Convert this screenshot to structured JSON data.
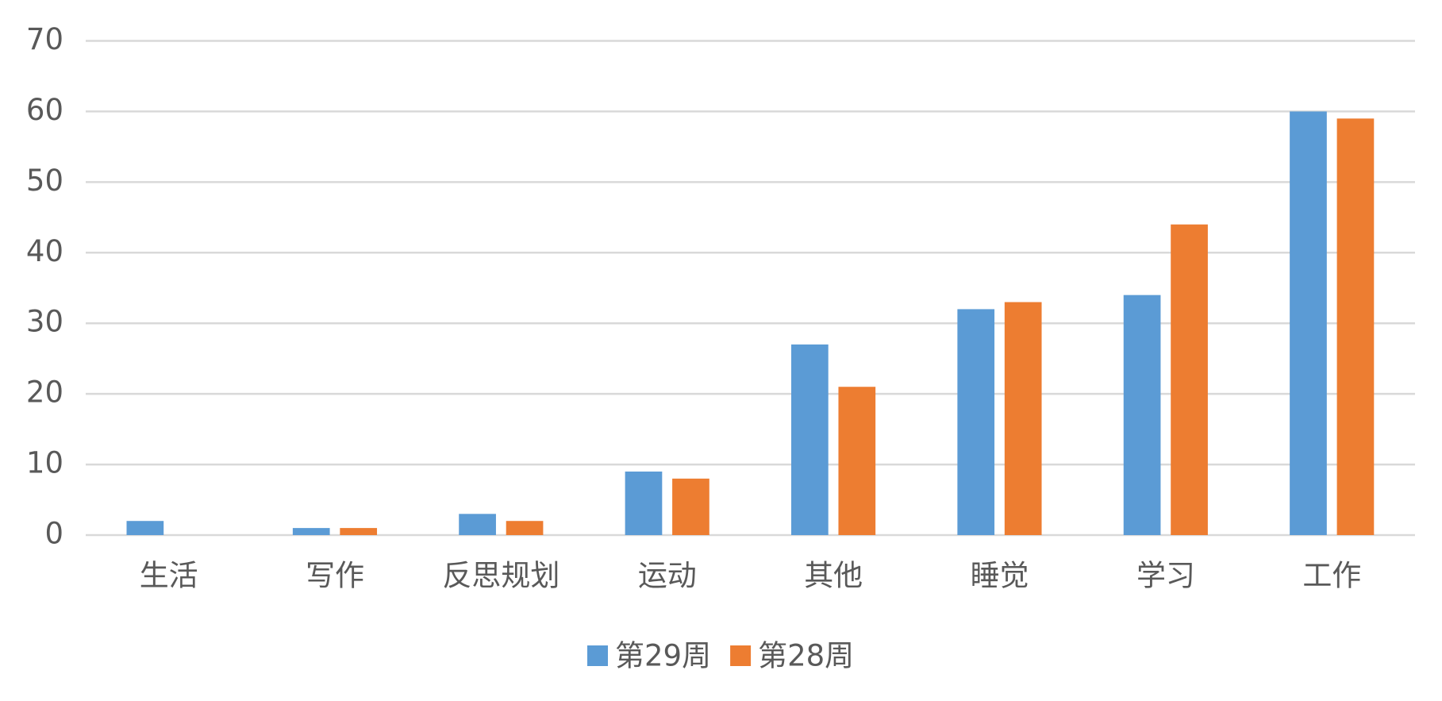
{
  "chart_data": {
    "type": "bar",
    "categories": [
      "生活",
      "写作",
      "反思规划",
      "运动",
      "其他",
      "睡觉",
      "学习",
      "工作"
    ],
    "series": [
      {
        "name": "第29周",
        "color": "#5b9bd5",
        "values": [
          2,
          1,
          3,
          9,
          27,
          32,
          34,
          60
        ]
      },
      {
        "name": "第28周",
        "color": "#ed7d31",
        "values": [
          0,
          1,
          2,
          8,
          21,
          33,
          44,
          59
        ]
      }
    ],
    "ylim": [
      0,
      70
    ],
    "yticks": [
      0,
      10,
      20,
      30,
      40,
      50,
      60,
      70
    ],
    "grid": true,
    "legend": "bottom"
  }
}
